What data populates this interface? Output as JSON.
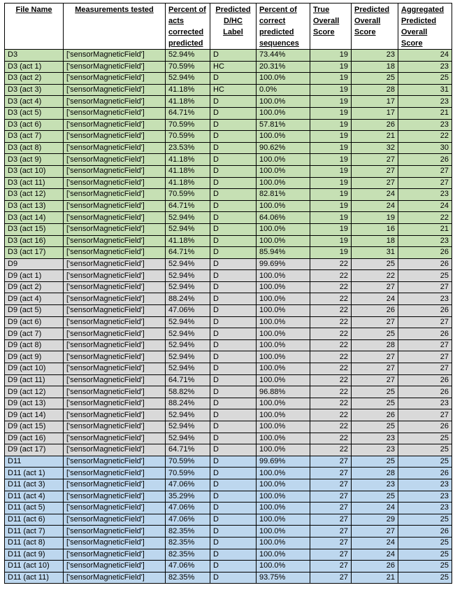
{
  "headers": [
    "File Name",
    "Measurements tested",
    "Percent of acts corrected predicted",
    "Predicted D/HC Label",
    "Percent of correct predicted sequences",
    "True Overall Score",
    "Predicted Overall Score",
    "Aggregated Predicted Overall Score"
  ],
  "groups": [
    {
      "color": "#c6e0b4",
      "rows": [
        [
          "D3",
          "['sensorMagneticField']",
          "52.94%",
          "D",
          "73.44%",
          "19",
          "23",
          "24"
        ],
        [
          "D3 (act 1)",
          "['sensorMagneticField']",
          "70.59%",
          "HC",
          "20.31%",
          "19",
          "18",
          "23"
        ],
        [
          "D3 (act 2)",
          "['sensorMagneticField']",
          "52.94%",
          "D",
          "100.0%",
          "19",
          "25",
          "25"
        ],
        [
          "D3 (act 3)",
          "['sensorMagneticField']",
          "41.18%",
          "HC",
          "0.0%",
          "19",
          "28",
          "31"
        ],
        [
          "D3 (act 4)",
          "['sensorMagneticField']",
          "41.18%",
          "D",
          "100.0%",
          "19",
          "17",
          "23"
        ],
        [
          "D3 (act 5)",
          "['sensorMagneticField']",
          "64.71%",
          "D",
          "100.0%",
          "19",
          "17",
          "21"
        ],
        [
          "D3 (act 6)",
          "['sensorMagneticField']",
          "70.59%",
          "D",
          "57.81%",
          "19",
          "26",
          "23"
        ],
        [
          "D3 (act 7)",
          "['sensorMagneticField']",
          "70.59%",
          "D",
          "100.0%",
          "19",
          "21",
          "22"
        ],
        [
          "D3 (act 8)",
          "['sensorMagneticField']",
          "23.53%",
          "D",
          "90.62%",
          "19",
          "32",
          "30"
        ],
        [
          "D3 (act 9)",
          "['sensorMagneticField']",
          "41.18%",
          "D",
          "100.0%",
          "19",
          "27",
          "26"
        ],
        [
          "D3 (act 10)",
          "['sensorMagneticField']",
          "41.18%",
          "D",
          "100.0%",
          "19",
          "27",
          "27"
        ],
        [
          "D3 (act 11)",
          "['sensorMagneticField']",
          "41.18%",
          "D",
          "100.0%",
          "19",
          "27",
          "27"
        ],
        [
          "D3 (act 12)",
          "['sensorMagneticField']",
          "70.59%",
          "D",
          "82.81%",
          "19",
          "24",
          "23"
        ],
        [
          "D3 (act 13)",
          "['sensorMagneticField']",
          "64.71%",
          "D",
          "100.0%",
          "19",
          "24",
          "24"
        ],
        [
          "D3 (act 14)",
          "['sensorMagneticField']",
          "52.94%",
          "D",
          "64.06%",
          "19",
          "19",
          "22"
        ],
        [
          "D3 (act 15)",
          "['sensorMagneticField']",
          "52.94%",
          "D",
          "100.0%",
          "19",
          "16",
          "21"
        ],
        [
          "D3 (act 16)",
          "['sensorMagneticField']",
          "41.18%",
          "D",
          "100.0%",
          "19",
          "18",
          "23"
        ],
        [
          "D3 (act 17)",
          "['sensorMagneticField']",
          "64.71%",
          "D",
          "85.94%",
          "19",
          "31",
          "26"
        ]
      ]
    },
    {
      "color": "#d9d9d9",
      "rows": [
        [
          "D9",
          "['sensorMagneticField']",
          "52.94%",
          "D",
          "99.69%",
          "22",
          "25",
          "26"
        ],
        [
          "D9 (act 1)",
          "['sensorMagneticField']",
          "52.94%",
          "D",
          "100.0%",
          "22",
          "22",
          "25"
        ],
        [
          "D9 (act 2)",
          "['sensorMagneticField']",
          "52.94%",
          "D",
          "100.0%",
          "22",
          "27",
          "27"
        ],
        [
          "D9 (act 4)",
          "['sensorMagneticField']",
          "88.24%",
          "D",
          "100.0%",
          "22",
          "24",
          "23"
        ],
        [
          "D9 (act 5)",
          "['sensorMagneticField']",
          "47.06%",
          "D",
          "100.0%",
          "22",
          "26",
          "26"
        ],
        [
          "D9 (act 6)",
          "['sensorMagneticField']",
          "52.94%",
          "D",
          "100.0%",
          "22",
          "27",
          "27"
        ],
        [
          "D9 (act 7)",
          "['sensorMagneticField']",
          "52.94%",
          "D",
          "100.0%",
          "22",
          "25",
          "26"
        ],
        [
          "D9 (act 8)",
          "['sensorMagneticField']",
          "52.94%",
          "D",
          "100.0%",
          "22",
          "28",
          "27"
        ],
        [
          "D9 (act 9)",
          "['sensorMagneticField']",
          "52.94%",
          "D",
          "100.0%",
          "22",
          "27",
          "27"
        ],
        [
          "D9 (act 10)",
          "['sensorMagneticField']",
          "52.94%",
          "D",
          "100.0%",
          "22",
          "27",
          "27"
        ],
        [
          "D9 (act 11)",
          "['sensorMagneticField']",
          "64.71%",
          "D",
          "100.0%",
          "22",
          "27",
          "26"
        ],
        [
          "D9 (act 12)",
          "['sensorMagneticField']",
          "58.82%",
          "D",
          "96.88%",
          "22",
          "25",
          "26"
        ],
        [
          "D9 (act 13)",
          "['sensorMagneticField']",
          "88.24%",
          "D",
          "100.0%",
          "22",
          "25",
          "23"
        ],
        [
          "D9 (act 14)",
          "['sensorMagneticField']",
          "52.94%",
          "D",
          "100.0%",
          "22",
          "26",
          "27"
        ],
        [
          "D9 (act 15)",
          "['sensorMagneticField']",
          "52.94%",
          "D",
          "100.0%",
          "22",
          "25",
          "26"
        ],
        [
          "D9 (act 16)",
          "['sensorMagneticField']",
          "52.94%",
          "D",
          "100.0%",
          "22",
          "23",
          "25"
        ],
        [
          "D9 (act 17)",
          "['sensorMagneticField']",
          "64.71%",
          "D",
          "100.0%",
          "22",
          "23",
          "25"
        ]
      ]
    },
    {
      "color": "#bdd7ee",
      "rows": [
        [
          "D11",
          "['sensorMagneticField']",
          "70.59%",
          "D",
          "99.69%",
          "27",
          "25",
          "25"
        ],
        [
          "D11 (act 1)",
          "['sensorMagneticField']",
          "70.59%",
          "D",
          "100.0%",
          "27",
          "28",
          "26"
        ],
        [
          "D11 (act 3)",
          "['sensorMagneticField']",
          "47.06%",
          "D",
          "100.0%",
          "27",
          "23",
          "23"
        ],
        [
          "D11 (act 4)",
          "['sensorMagneticField']",
          "35.29%",
          "D",
          "100.0%",
          "27",
          "25",
          "23"
        ],
        [
          "D11 (act 5)",
          "['sensorMagneticField']",
          "47.06%",
          "D",
          "100.0%",
          "27",
          "24",
          "23"
        ],
        [
          "D11 (act 6)",
          "['sensorMagneticField']",
          "47.06%",
          "D",
          "100.0%",
          "27",
          "29",
          "25"
        ],
        [
          "D11 (act 7)",
          "['sensorMagneticField']",
          "82.35%",
          "D",
          "100.0%",
          "27",
          "27",
          "26"
        ],
        [
          "D11 (act 8)",
          "['sensorMagneticField']",
          "82.35%",
          "D",
          "100.0%",
          "27",
          "24",
          "25"
        ],
        [
          "D11 (act 9)",
          "['sensorMagneticField']",
          "82.35%",
          "D",
          "100.0%",
          "27",
          "24",
          "25"
        ],
        [
          "D11 (act 10)",
          "['sensorMagneticField']",
          "47.06%",
          "D",
          "100.0%",
          "27",
          "26",
          "25"
        ],
        [
          "D11 (act 11)",
          "['sensorMagneticField']",
          "82.35%",
          "D",
          "93.75%",
          "27",
          "21",
          "25"
        ]
      ]
    }
  ]
}
